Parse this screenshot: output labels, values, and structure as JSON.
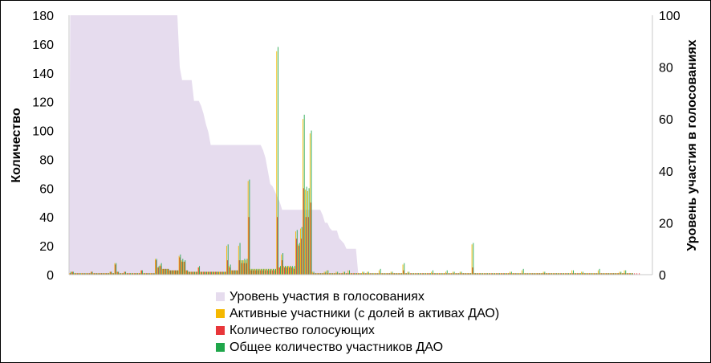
{
  "chart_data": {
    "type": "bar",
    "ylabel": "Количество",
    "y2label": "Уровень участия в голосованиях",
    "ylim": [
      0,
      180
    ],
    "y2lim": [
      0,
      100
    ],
    "yticks": [
      "0",
      "20",
      "40",
      "60",
      "80",
      "100",
      "120",
      "140",
      "160",
      "180"
    ],
    "y2ticks": [
      "0",
      "20",
      "40",
      "60",
      "80",
      "100"
    ],
    "colors": {
      "participation": "#e6dcee",
      "active": "#f5b800",
      "voters": "#e8363a",
      "total": "#1fa64a"
    },
    "series": [
      {
        "name": "Уровень участия в голосованиях",
        "type": "area",
        "axis": "right",
        "values": [
          100,
          100,
          100,
          100,
          100,
          100,
          100,
          100,
          100,
          100,
          100,
          100,
          100,
          100,
          100,
          100,
          100,
          100,
          100,
          100,
          100,
          100,
          100,
          100,
          100,
          100,
          100,
          100,
          100,
          100,
          100,
          100,
          100,
          100,
          100,
          100,
          100,
          100,
          100,
          100,
          100,
          100,
          100,
          100,
          100,
          100,
          80,
          75,
          75,
          75,
          75,
          75,
          67,
          67,
          67,
          65,
          62,
          58,
          55,
          50,
          50,
          50,
          50,
          50,
          50,
          50,
          50,
          50,
          50,
          50,
          50,
          50,
          50,
          50,
          50,
          50,
          50,
          50,
          50,
          50,
          50,
          48,
          45,
          40,
          35,
          34,
          32,
          30,
          28,
          25,
          25,
          25,
          25,
          25,
          25,
          25,
          25,
          25,
          25,
          25,
          25,
          25,
          25,
          25,
          25,
          25,
          23,
          20,
          20,
          18,
          17,
          17,
          17,
          14,
          13,
          12,
          10,
          10,
          10,
          10,
          10,
          0,
          0,
          0,
          0,
          0,
          0,
          0,
          0,
          0,
          0,
          0,
          0,
          0,
          0,
          0,
          0,
          0,
          0,
          0,
          0,
          0,
          0,
          0,
          0,
          0,
          0,
          0,
          0,
          0,
          0,
          0,
          0,
          0,
          0,
          0,
          0,
          0,
          0,
          0,
          0,
          0,
          0,
          0,
          0,
          0,
          0,
          0,
          0,
          0,
          0,
          0,
          0,
          0,
          0,
          0,
          0,
          0,
          0,
          0,
          0,
          0,
          0,
          0,
          0,
          0,
          0,
          0,
          0,
          0,
          0,
          0,
          0,
          0,
          0,
          0,
          0,
          0,
          0,
          0,
          0,
          0,
          0,
          0,
          0,
          0,
          0,
          0,
          0,
          0,
          0,
          0,
          0,
          0,
          0,
          0,
          0,
          0,
          0,
          0,
          0,
          0,
          0,
          0,
          0,
          0,
          0,
          0,
          0,
          0,
          0,
          0,
          0,
          0,
          0,
          0,
          0,
          0,
          0,
          0,
          0,
          0,
          0,
          0,
          0
        ]
      },
      {
        "name": "Активные участники (с долей в активах ДАО)",
        "type": "bar",
        "axis": "left",
        "values": [
          1,
          2,
          1,
          1,
          1,
          1,
          1,
          1,
          1,
          2,
          1,
          1,
          1,
          1,
          1,
          1,
          1,
          2,
          1,
          8,
          2,
          1,
          1,
          2,
          1,
          1,
          1,
          1,
          1,
          1,
          3,
          1,
          1,
          1,
          1,
          1,
          11,
          5,
          7,
          4,
          4,
          4,
          3,
          3,
          3,
          3,
          13,
          10,
          9,
          3,
          2,
          2,
          2,
          2,
          5,
          2,
          2,
          2,
          2,
          2,
          2,
          2,
          2,
          2,
          2,
          2,
          20,
          6,
          3,
          3,
          3,
          20,
          10,
          10,
          10,
          65,
          4,
          4,
          4,
          4,
          4,
          4,
          4,
          4,
          4,
          4,
          4,
          155,
          5,
          14,
          6,
          6,
          6,
          6,
          5,
          30,
          21,
          32,
          108,
          59,
          58,
          98,
          2,
          1,
          1,
          1,
          1,
          2,
          3,
          1,
          1,
          1,
          2,
          1,
          1,
          2,
          1,
          3,
          1,
          1,
          1,
          1,
          1,
          2,
          1,
          2,
          1,
          1,
          1,
          1,
          3,
          1,
          1,
          1,
          1,
          2,
          1,
          1,
          1,
          1,
          7,
          1,
          2,
          1,
          1,
          1,
          1,
          1,
          1,
          1,
          1,
          1,
          2,
          1,
          1,
          1,
          1,
          1,
          2,
          1,
          1,
          2,
          1,
          1,
          2,
          1,
          1,
          1,
          1,
          21,
          1,
          1,
          1,
          1,
          1,
          1,
          1,
          1,
          1,
          1,
          1,
          1,
          1,
          1,
          1,
          2,
          1,
          1,
          1,
          1,
          3,
          1,
          1,
          1,
          1,
          1,
          1,
          1,
          1,
          2,
          1,
          1,
          1,
          1,
          1,
          1,
          1,
          1,
          1,
          1,
          1,
          3,
          1,
          1,
          1,
          2,
          1,
          1,
          1,
          1,
          1,
          1,
          3,
          1,
          1,
          1,
          1,
          1,
          1,
          1,
          1,
          2,
          1,
          3,
          1,
          1,
          1
        ]
      },
      {
        "name": "Количество голосующих",
        "type": "bar",
        "axis": "left",
        "values": [
          1,
          2,
          1,
          1,
          1,
          1,
          1,
          1,
          1,
          2,
          1,
          1,
          1,
          1,
          1,
          1,
          1,
          2,
          1,
          7,
          2,
          1,
          1,
          2,
          1,
          1,
          1,
          1,
          1,
          1,
          3,
          1,
          1,
          1,
          1,
          1,
          10,
          5,
          6,
          4,
          4,
          4,
          3,
          3,
          3,
          3,
          12,
          9,
          9,
          3,
          2,
          2,
          2,
          2,
          5,
          2,
          2,
          2,
          2,
          2,
          2,
          2,
          2,
          2,
          2,
          2,
          10,
          5,
          3,
          3,
          3,
          10,
          8,
          8,
          8,
          40,
          3,
          3,
          3,
          3,
          3,
          3,
          3,
          3,
          3,
          3,
          3,
          40,
          5,
          10,
          5,
          5,
          5,
          5,
          4,
          25,
          20,
          25,
          60,
          40,
          40,
          50,
          1,
          1,
          1,
          1,
          1,
          1,
          1,
          1,
          1,
          1,
          1,
          1,
          1,
          1,
          1,
          1,
          1,
          1,
          1,
          1,
          1,
          1,
          1,
          1,
          1,
          1,
          1,
          1,
          1,
          1,
          1,
          1,
          1,
          1,
          1,
          1,
          1,
          1,
          3,
          1,
          1,
          1,
          1,
          1,
          1,
          1,
          1,
          1,
          1,
          1,
          1,
          1,
          1,
          1,
          1,
          1,
          1,
          1,
          1,
          1,
          1,
          1,
          1,
          1,
          1,
          1,
          1,
          5,
          1,
          1,
          1,
          1,
          1,
          1,
          1,
          1,
          1,
          1,
          1,
          1,
          1,
          1,
          1,
          1,
          1,
          1,
          1,
          1,
          1,
          1,
          1,
          1,
          1,
          1,
          1,
          1,
          1,
          1,
          1,
          1,
          1,
          1,
          1,
          1,
          1,
          1,
          1,
          1,
          1,
          1,
          1,
          1,
          1,
          1,
          1,
          1,
          1,
          1,
          1,
          1,
          1,
          1,
          1,
          1,
          1,
          1,
          1,
          1,
          1,
          1,
          1,
          1,
          1,
          1,
          1,
          1,
          1,
          1
        ]
      },
      {
        "name": "Общее количество участников ДАО",
        "type": "bar",
        "axis": "left",
        "values": [
          2,
          2,
          1,
          1,
          1,
          1,
          1,
          1,
          1,
          2,
          1,
          1,
          1,
          1,
          1,
          1,
          1,
          2,
          1,
          8,
          2,
          1,
          1,
          2,
          1,
          1,
          1,
          1,
          1,
          1,
          3,
          1,
          1,
          1,
          1,
          1,
          11,
          6,
          8,
          4,
          4,
          4,
          3,
          3,
          3,
          3,
          14,
          11,
          10,
          3,
          2,
          2,
          2,
          2,
          6,
          2,
          2,
          2,
          2,
          2,
          2,
          2,
          2,
          2,
          2,
          2,
          21,
          7,
          3,
          3,
          3,
          22,
          10,
          11,
          11,
          66,
          4,
          4,
          4,
          4,
          4,
          4,
          4,
          4,
          4,
          4,
          4,
          158,
          6,
          15,
          6,
          6,
          6,
          6,
          6,
          31,
          22,
          33,
          111,
          61,
          60,
          100,
          2,
          1,
          1,
          1,
          1,
          2,
          3,
          1,
          1,
          1,
          2,
          1,
          1,
          2,
          1,
          3,
          1,
          1,
          1,
          1,
          1,
          2,
          1,
          2,
          1,
          1,
          1,
          1,
          4,
          1,
          1,
          1,
          1,
          2,
          1,
          1,
          1,
          1,
          8,
          1,
          2,
          1,
          1,
          1,
          1,
          1,
          1,
          1,
          1,
          1,
          3,
          1,
          1,
          1,
          1,
          1,
          3,
          1,
          1,
          2,
          1,
          1,
          2,
          1,
          1,
          1,
          1,
          22,
          1,
          1,
          1,
          1,
          1,
          1,
          1,
          1,
          1,
          1,
          1,
          1,
          1,
          1,
          1,
          2,
          1,
          1,
          1,
          1,
          4,
          1,
          1,
          1,
          1,
          1,
          1,
          1,
          1,
          2,
          1,
          1,
          1,
          1,
          1,
          1,
          1,
          1,
          1,
          1,
          1,
          3,
          1,
          1,
          1,
          2,
          1,
          1,
          1,
          1,
          1,
          1,
          4,
          1,
          1,
          1,
          1,
          1,
          1,
          1,
          1,
          2,
          1,
          3,
          1,
          1,
          1
        ]
      }
    ],
    "legend_position": "bottom"
  }
}
